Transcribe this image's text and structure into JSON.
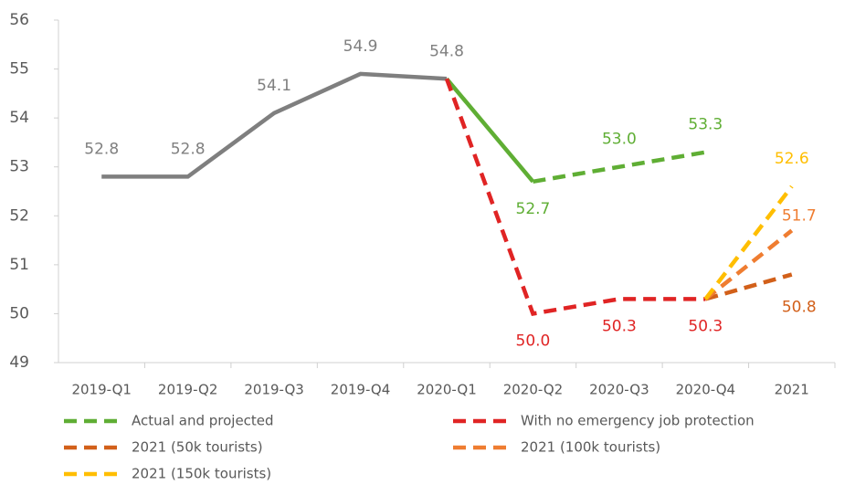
{
  "chart_data": {
    "type": "line",
    "categories": [
      "2019-Q1",
      "2019-Q2",
      "2019-Q3",
      "2019-Q4",
      "2020-Q1",
      "2020-Q2",
      "2020-Q3",
      "2020-Q4",
      "2021"
    ],
    "ylim": [
      49,
      56
    ],
    "yticks": [
      49,
      50,
      51,
      52,
      53,
      54,
      55,
      56
    ],
    "series": [
      {
        "color": "#7f7f7f",
        "dash": false,
        "values": [
          52.8,
          52.8,
          54.1,
          54.9,
          54.8,
          null,
          null,
          null,
          null
        ]
      },
      {
        "color": "#5fae34",
        "dash": false,
        "values": [
          null,
          null,
          null,
          null,
          54.8,
          52.7,
          null,
          null,
          null
        ]
      },
      {
        "name": "Actual and projected",
        "color": "#5fae34",
        "dash": true,
        "values": [
          null,
          null,
          null,
          null,
          null,
          52.7,
          53.0,
          53.3,
          null
        ],
        "value_labels": [
          null,
          null,
          null,
          null,
          null,
          "52.7",
          "53.0",
          "53.3",
          null
        ]
      },
      {
        "name": "With no emergency job protection",
        "color": "#e02424",
        "dash": true,
        "values": [
          null,
          null,
          null,
          null,
          54.8,
          50.0,
          50.3,
          50.3,
          null
        ],
        "value_labels": [
          null,
          null,
          null,
          null,
          null,
          "50.0",
          "50.3",
          "50.3",
          null
        ]
      },
      {
        "name": "2021 (50k tourists)",
        "color": "#d2601a",
        "dash": true,
        "values": [
          null,
          null,
          null,
          null,
          null,
          null,
          null,
          50.3,
          50.8
        ],
        "value_labels": [
          null,
          null,
          null,
          null,
          null,
          null,
          null,
          null,
          "50.8"
        ]
      },
      {
        "name": "2021 (100k tourists)",
        "color": "#ef7d31",
        "dash": true,
        "values": [
          null,
          null,
          null,
          null,
          null,
          null,
          null,
          50.3,
          51.7
        ],
        "value_labels": [
          null,
          null,
          null,
          null,
          null,
          null,
          null,
          null,
          "51.7"
        ]
      },
      {
        "name": "2021 (150k tourists)",
        "color": "#ffbe00",
        "dash": true,
        "values": [
          null,
          null,
          null,
          null,
          null,
          null,
          null,
          50.3,
          52.6
        ],
        "value_labels": [
          null,
          null,
          null,
          null,
          null,
          null,
          null,
          null,
          "52.6"
        ]
      }
    ],
    "gray_value_labels": [
      "52.8",
      "52.8",
      "54.1",
      "54.9",
      "54.8",
      null,
      null,
      null,
      null
    ]
  }
}
